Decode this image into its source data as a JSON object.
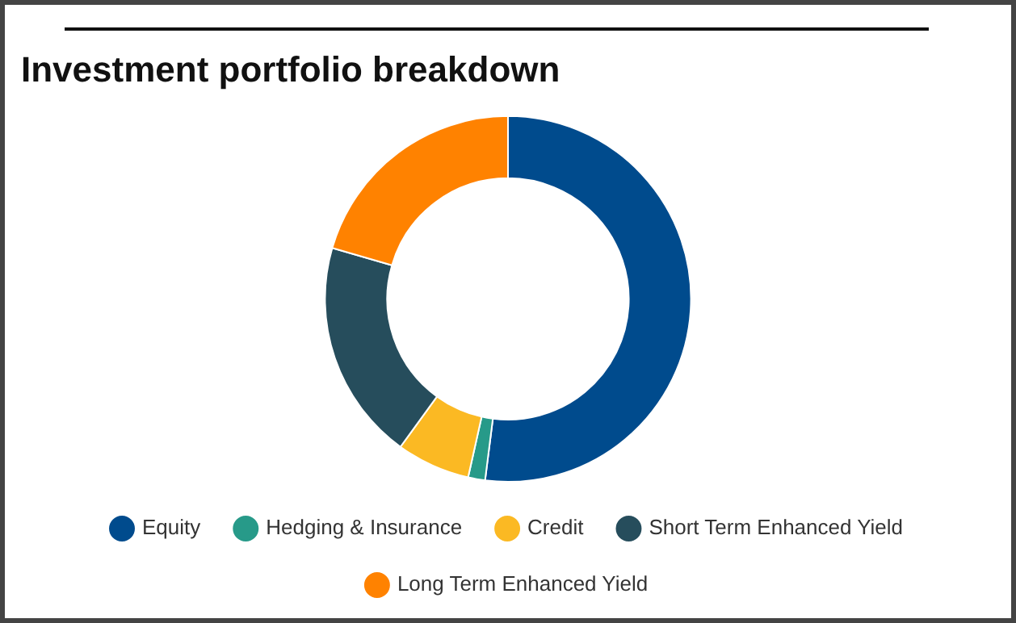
{
  "chart_data": {
    "type": "donut",
    "title": "Investment portfolio breakdown",
    "categories": [
      "Equity",
      "Hedging & Insurance",
      "Credit",
      "Short Term Enhanced Yield",
      "Long Term Enhanced Yield"
    ],
    "values": [
      52,
      1.5,
      6.5,
      19.5,
      20.5
    ],
    "colors": [
      "#004b8d",
      "#279a89",
      "#fbb923",
      "#264d5c",
      "#ff8200"
    ],
    "legend": "bottom"
  }
}
